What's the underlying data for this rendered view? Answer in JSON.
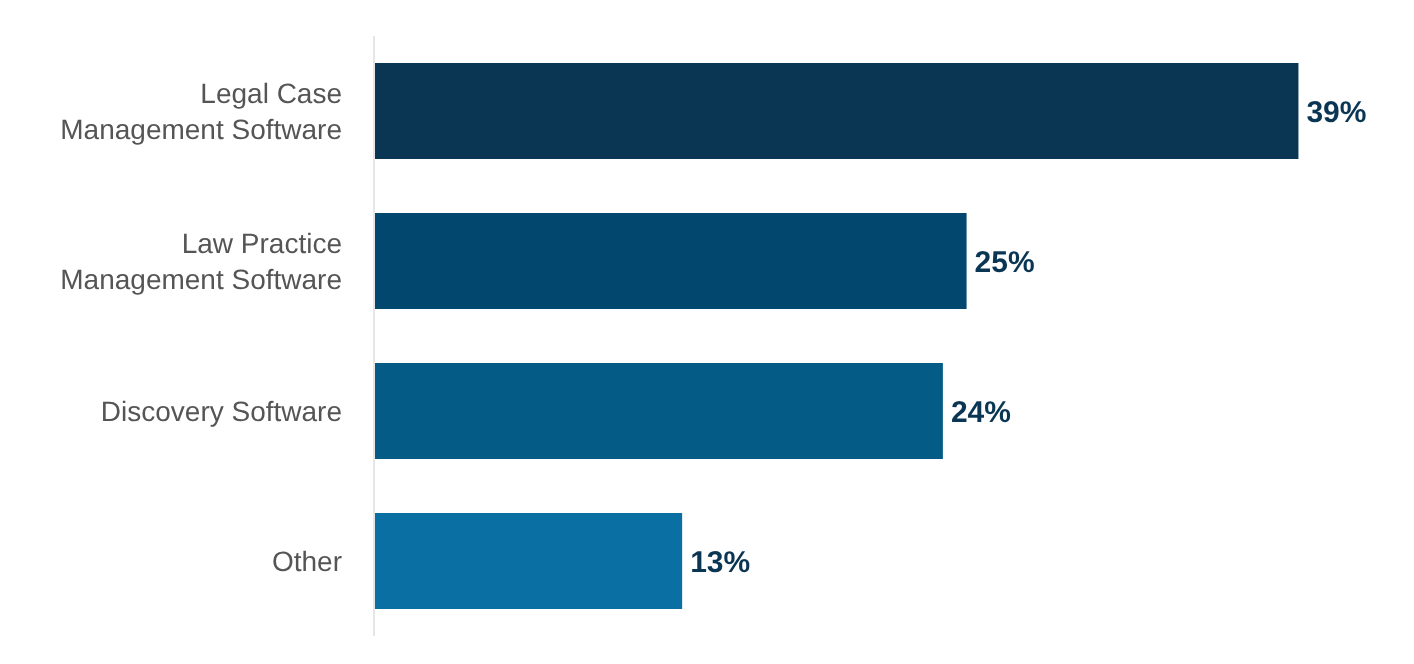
{
  "chart_data": {
    "type": "bar",
    "orientation": "horizontal",
    "tick_labels": "y",
    "categories": [
      "Legal Case Management Software",
      "Law Practice Management Software",
      "Discovery Software",
      "Other"
    ],
    "values": [
      39,
      25,
      24,
      13
    ],
    "value_labels": [
      "39%",
      "25%",
      "24%",
      "13%"
    ],
    "colors": [
      "#0a3653",
      "#02476e",
      "#045b86",
      "#0a6fa3"
    ]
  }
}
